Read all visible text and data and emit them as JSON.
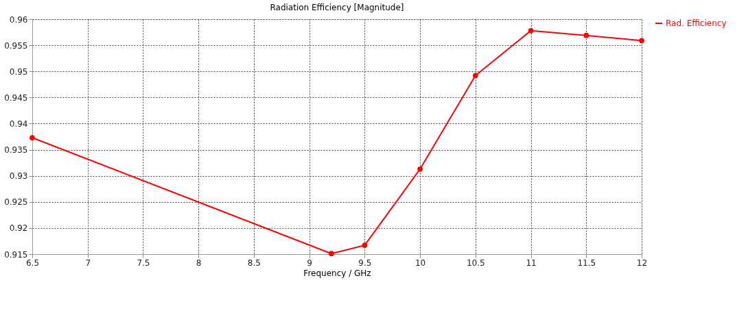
{
  "chart_data": {
    "type": "line",
    "title": "Radiation Efficiency [Magnitude]",
    "xlabel": "Frequency / GHz",
    "x": [
      6.5,
      9.2,
      9.5,
      10,
      10.5,
      11,
      11.5,
      12
    ],
    "series": [
      {
        "name": "Rad. Efficiency",
        "color": "#ff0000",
        "values": [
          0.9373,
          0.9151,
          0.9167,
          0.9313,
          0.9492,
          0.9578,
          0.9569,
          0.9559
        ]
      }
    ],
    "xlim": [
      6.5,
      12
    ],
    "xticks": [
      6.5,
      7,
      7.5,
      8,
      8.5,
      9,
      9.5,
      10,
      10.5,
      11,
      11.5,
      12
    ],
    "ylim": [
      0.915,
      0.96
    ],
    "yticks": [
      0.915,
      0.92,
      0.925,
      0.93,
      0.935,
      0.94,
      0.945,
      0.95,
      0.955,
      0.96
    ],
    "grid": true,
    "legend": "top right",
    "marker": "circle",
    "line_style": "solid"
  }
}
